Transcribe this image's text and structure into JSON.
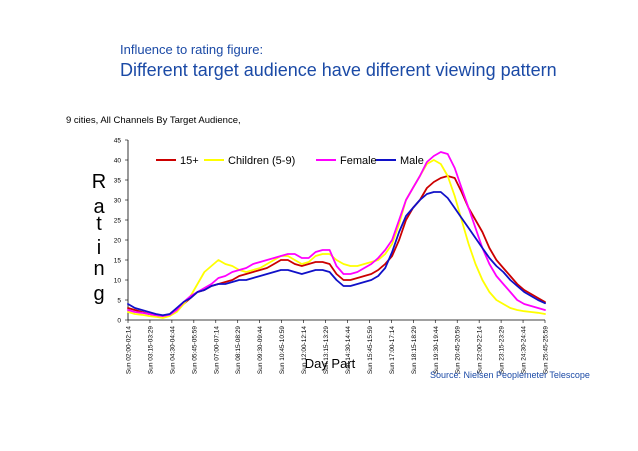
{
  "header": {
    "kicker": "Influence to rating figure:",
    "headline": "Different target audience have different viewing pattern"
  },
  "subtitle": "9 cities, All Channels By Target Audience,",
  "source": "Source: Nielsen Peoplemeter Telescope",
  "chart_data": {
    "type": "line",
    "title": "",
    "xlabel": "Day Part",
    "ylabel": "Rating",
    "ylim": [
      0,
      45
    ],
    "yticks": [
      0,
      5,
      10,
      15,
      20,
      25,
      30,
      35,
      40,
      45
    ],
    "grid": false,
    "legend_position": "top",
    "x_tick_labels": [
      "Sun 02:00-02:14",
      "Sun 03:15-03:29",
      "Sun 04:30-04:44",
      "Sun 05:45-05:59",
      "Sun 07:00-07:14",
      "Sun 08:15-08:29",
      "Sun 09:30-09:44",
      "Sun 10:45-10:59",
      "Sun 12:00-12:14",
      "Sun 13:15-13:29",
      "Sun 14:30-14:44",
      "Sun 15:45-15:59",
      "Sun 17:00-17:14",
      "Sun 18:15-18:29",
      "Sun 19:30-19:44",
      "Sun 20:45-20:59",
      "Sun 22:00-22:14",
      "Sun 23:15-23:29",
      "Sun 24:30-24:44",
      "Sun 25:45-25:59"
    ],
    "series": [
      {
        "name": "15+",
        "color": "#cc0000",
        "values": [
          3,
          2.5,
          2,
          1.5,
          1.2,
          1,
          1.3,
          2.5,
          4,
          5.5,
          7,
          7.5,
          8.5,
          9,
          9.5,
          10,
          11,
          11.5,
          12,
          12.5,
          13,
          14,
          15,
          15,
          14,
          13.5,
          14,
          14.5,
          14.5,
          14,
          11.5,
          10,
          10,
          10.5,
          11,
          11.5,
          12.5,
          14,
          16,
          20,
          25,
          28,
          30,
          33,
          34.5,
          35.5,
          36,
          35.5,
          32,
          28,
          25,
          22,
          18,
          15,
          13,
          11,
          9,
          7.5,
          6.5,
          5.5,
          4.5
        ]
      },
      {
        "name": "Children (5-9)",
        "color": "#ffff00",
        "values": [
          2,
          1.5,
          1.3,
          1,
          0.8,
          0.5,
          1,
          2,
          4,
          6,
          9,
          12,
          13.5,
          15,
          14,
          13.5,
          12.5,
          12,
          12.5,
          13,
          14,
          15,
          16,
          16,
          15,
          14,
          14.5,
          16,
          16.5,
          16.5,
          15,
          14,
          13.5,
          13.5,
          14,
          14.5,
          15,
          16.5,
          19,
          24,
          30,
          33,
          36,
          39,
          40,
          39,
          36,
          31,
          25,
          19,
          14,
          10,
          7,
          5,
          4,
          3,
          2.5,
          2.2,
          2,
          1.8,
          1.5
        ]
      },
      {
        "name": "Female",
        "color": "#ff00ff",
        "values": [
          2.5,
          2,
          1.8,
          1.5,
          1.2,
          1,
          1.3,
          2.5,
          4.5,
          6,
          7,
          8,
          9,
          10.5,
          11,
          12,
          12.5,
          13,
          14,
          14.5,
          15,
          15.5,
          16,
          16.5,
          16.5,
          15.5,
          15.5,
          17,
          17.5,
          17.5,
          13.5,
          11.5,
          11.5,
          12,
          13,
          14,
          15.5,
          17.5,
          20,
          25,
          30,
          33,
          36,
          39.5,
          41,
          42,
          41.5,
          38,
          33,
          28,
          23,
          18,
          14,
          11,
          9,
          7,
          5,
          4,
          3.5,
          3,
          2.5
        ]
      },
      {
        "name": "Male",
        "color": "#1010c8",
        "values": [
          4,
          3,
          2.5,
          2,
          1.5,
          1.2,
          1.5,
          3,
          4.5,
          5.5,
          7,
          7.5,
          8.5,
          9,
          9,
          9.5,
          10,
          10,
          10.5,
          11,
          11.5,
          12,
          12.5,
          12.5,
          12,
          11.5,
          12,
          12.5,
          12.5,
          12,
          10,
          8.5,
          8.5,
          9,
          9.5,
          10,
          11,
          13,
          17,
          22,
          26,
          28,
          30,
          31.5,
          32,
          32,
          30.5,
          28,
          25.5,
          23,
          20.5,
          18,
          15.5,
          13.5,
          12,
          10,
          8.5,
          7,
          6,
          5,
          4.2
        ]
      }
    ]
  }
}
